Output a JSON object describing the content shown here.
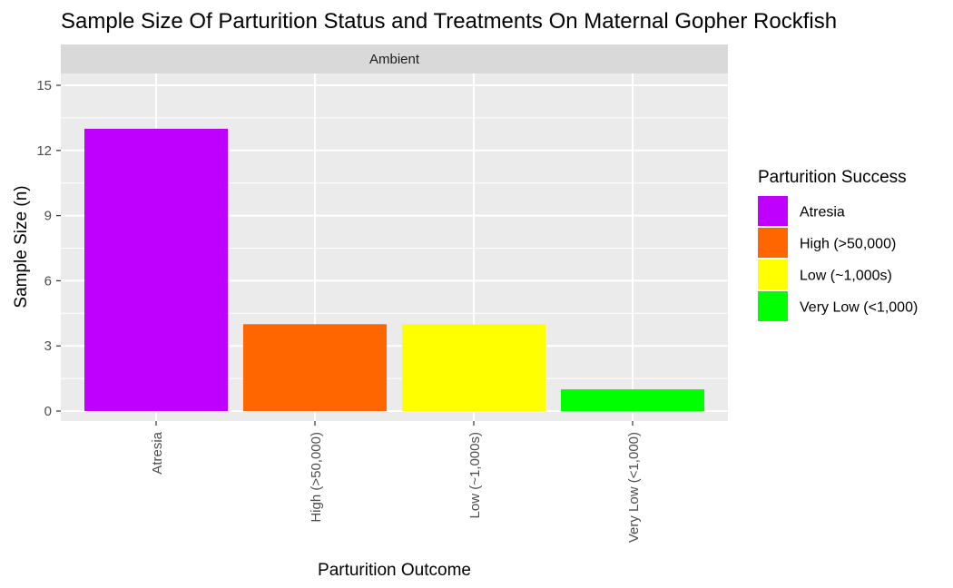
{
  "chart_data": {
    "type": "bar",
    "title": "Sample Size Of Parturition Status and Treatments On Maternal Gopher Rockfish",
    "facet": "Ambient",
    "xlabel": "Parturition Outcome",
    "ylabel": "Sample Size (n)",
    "categories": [
      "Atresia",
      "High (>50,000)",
      "Low (~1,000s)",
      "Very Low (<1,000)"
    ],
    "values": [
      13,
      4,
      4,
      1
    ],
    "colors": [
      "#BF00FF",
      "#FF6600",
      "#FFFF00",
      "#00FF00"
    ],
    "ylim": [
      0,
      15.6
    ],
    "yticks": [
      0,
      3,
      6,
      9,
      12,
      15
    ],
    "grid": true,
    "legend": {
      "title": "Parturition Success",
      "position": "right",
      "entries": [
        "Atresia",
        "High (>50,000)",
        "Low (~1,000s)",
        "Very Low (<1,000)"
      ]
    }
  }
}
